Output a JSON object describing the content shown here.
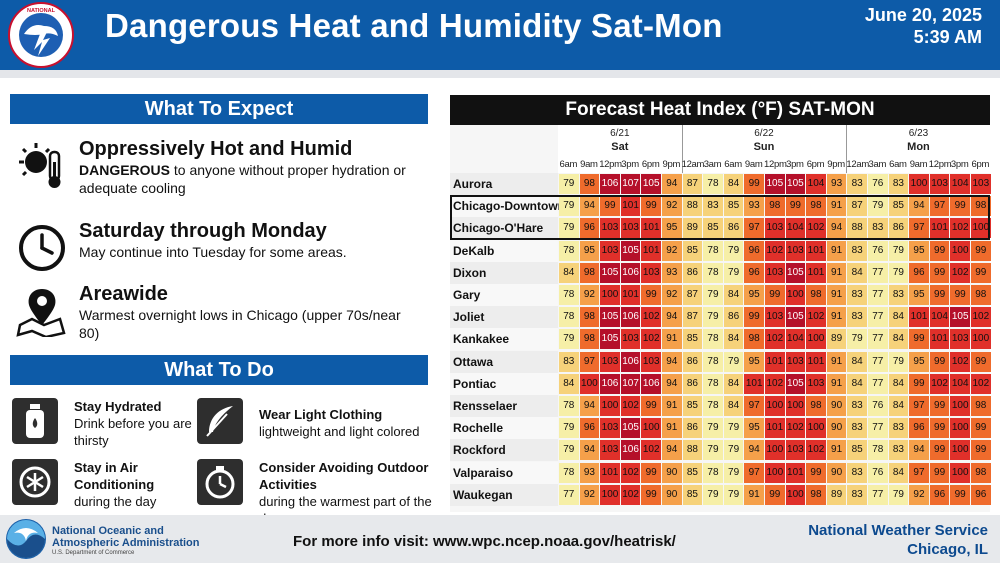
{
  "header": {
    "logo_text": "NATIONAL WEATHER SERVICE",
    "title": "Dangerous Heat and Humidity Sat-Mon",
    "date": "June 20, 2025",
    "time": "5:39 AM"
  },
  "expect": {
    "heading": "What To Expect",
    "items": [
      {
        "icon": "sun-thermometer-icon",
        "title": "Oppressively Hot and Humid",
        "bold": "DANGEROUS",
        "text": " to anyone without proper hydration or adequate cooling"
      },
      {
        "icon": "clock-icon",
        "title": "Saturday through Monday",
        "bold": "",
        "text": "May continue into Tuesday for some areas."
      },
      {
        "icon": "map-pin-icon",
        "title": "Areawide",
        "bold": "",
        "text": "Warmest overnight lows in Chicago (upper 70s/near 80)"
      }
    ]
  },
  "todo": {
    "heading": "What To Do",
    "items": [
      {
        "icon": "water-bottle-icon",
        "title": "Stay Hydrated",
        "text": "Drink before you are thirsty"
      },
      {
        "icon": "feather-icon",
        "title": "Wear Light Clothing",
        "text": "lightweight and light colored"
      },
      {
        "icon": "air-conditioning-icon",
        "title": "Stay in Air Conditioning",
        "text": "during the day"
      },
      {
        "icon": "timer-icon",
        "title": "Consider Avoiding Outdoor Activities",
        "text": "during the warmest part of the day"
      }
    ]
  },
  "table": {
    "title": "Forecast Heat Index (°F) SAT-MON",
    "days": [
      {
        "date": "6/21",
        "name": "Sat",
        "hours": [
          "6am",
          "9am",
          "12pm",
          "3pm",
          "6pm",
          "9pm"
        ]
      },
      {
        "date": "6/22",
        "name": "Sun",
        "hours": [
          "12am",
          "3am",
          "6am",
          "9am",
          "12pm",
          "3pm",
          "6pm",
          "9pm"
        ]
      },
      {
        "date": "6/23",
        "name": "Mon",
        "hours": [
          "12am",
          "3am",
          "6am",
          "9am",
          "12pm",
          "3pm",
          "6pm"
        ]
      }
    ],
    "highlighted_rows": [
      "Chicago-Downtown",
      "Chicago-O'Hare"
    ],
    "rows": [
      {
        "name": "Aurora",
        "values": [
          79,
          98,
          106,
          107,
          105,
          94,
          87,
          78,
          84,
          99,
          105,
          105,
          104,
          93,
          83,
          76,
          83,
          100,
          103,
          104,
          103
        ]
      },
      {
        "name": "Chicago-Downtown",
        "values": [
          79,
          94,
          99,
          101,
          99,
          92,
          88,
          83,
          85,
          93,
          98,
          99,
          98,
          91,
          87,
          79,
          85,
          94,
          97,
          99,
          98
        ]
      },
      {
        "name": "Chicago-O'Hare",
        "values": [
          79,
          96,
          103,
          103,
          101,
          95,
          89,
          85,
          86,
          97,
          103,
          104,
          102,
          94,
          88,
          83,
          86,
          97,
          101,
          102,
          100
        ]
      },
      {
        "name": "DeKalb",
        "values": [
          78,
          95,
          103,
          105,
          101,
          92,
          85,
          78,
          79,
          96,
          102,
          103,
          101,
          91,
          83,
          76,
          79,
          95,
          99,
          100,
          99
        ]
      },
      {
        "name": "Dixon",
        "values": [
          84,
          98,
          105,
          106,
          103,
          93,
          86,
          78,
          79,
          96,
          103,
          105,
          101,
          91,
          84,
          77,
          79,
          96,
          99,
          102,
          99
        ]
      },
      {
        "name": "Gary",
        "values": [
          78,
          92,
          100,
          101,
          99,
          92,
          87,
          79,
          84,
          95,
          99,
          100,
          98,
          91,
          83,
          77,
          83,
          95,
          99,
          99,
          98
        ]
      },
      {
        "name": "Joliet",
        "values": [
          78,
          98,
          105,
          106,
          102,
          94,
          87,
          79,
          86,
          99,
          103,
          105,
          102,
          91,
          83,
          77,
          84,
          101,
          104,
          105,
          102
        ]
      },
      {
        "name": "Kankakee",
        "values": [
          79,
          98,
          105,
          103,
          102,
          91,
          85,
          78,
          84,
          98,
          102,
          104,
          100,
          89,
          79,
          77,
          84,
          99,
          101,
          103,
          100
        ]
      },
      {
        "name": "Ottawa",
        "values": [
          83,
          97,
          103,
          106,
          103,
          94,
          86,
          78,
          79,
          95,
          101,
          103,
          101,
          91,
          84,
          77,
          79,
          95,
          99,
          102,
          99
        ]
      },
      {
        "name": "Pontiac",
        "values": [
          84,
          100,
          106,
          107,
          106,
          94,
          86,
          78,
          84,
          101,
          102,
          105,
          103,
          91,
          84,
          77,
          84,
          99,
          102,
          104,
          102
        ]
      },
      {
        "name": "Rensselaer",
        "values": [
          78,
          94,
          100,
          102,
          99,
          91,
          85,
          78,
          84,
          97,
          100,
          100,
          98,
          90,
          83,
          76,
          84,
          97,
          99,
          100,
          98
        ]
      },
      {
        "name": "Rochelle",
        "values": [
          79,
          96,
          103,
          105,
          100,
          91,
          86,
          79,
          79,
          95,
          101,
          102,
          100,
          90,
          83,
          77,
          83,
          96,
          99,
          100,
          99
        ]
      },
      {
        "name": "Rockford",
        "values": [
          79,
          94,
          103,
          106,
          102,
          94,
          88,
          79,
          79,
          94,
          100,
          103,
          102,
          91,
          85,
          78,
          83,
          94,
          99,
          100,
          99
        ]
      },
      {
        "name": "Valparaiso",
        "values": [
          78,
          93,
          101,
          102,
          99,
          90,
          85,
          78,
          79,
          97,
          100,
          101,
          99,
          90,
          83,
          76,
          84,
          97,
          99,
          100,
          98
        ]
      },
      {
        "name": "Waukegan",
        "values": [
          77,
          92,
          100,
          102,
          99,
          90,
          85,
          79,
          79,
          91,
          99,
          100,
          98,
          89,
          83,
          77,
          79,
          92,
          96,
          99,
          96
        ]
      }
    ],
    "colors": {
      "below80": "#f6efa7",
      "80to89": "#f6d27a",
      "90to95": "#f5a04a",
      "96to99": "#ef6b2c",
      "100to104": "#e0302a",
      "105plus": "#b5102a"
    }
  },
  "footer": {
    "agency_line1": "National Oceanic and",
    "agency_line2": "Atmospheric Administration",
    "agency_sub": "U.S. Department of Commerce",
    "link_text": "For more info visit: www.wpc.ncep.noaa.gov/heatrisk/",
    "office_line1": "National Weather Service",
    "office_line2": "Chicago, IL"
  }
}
